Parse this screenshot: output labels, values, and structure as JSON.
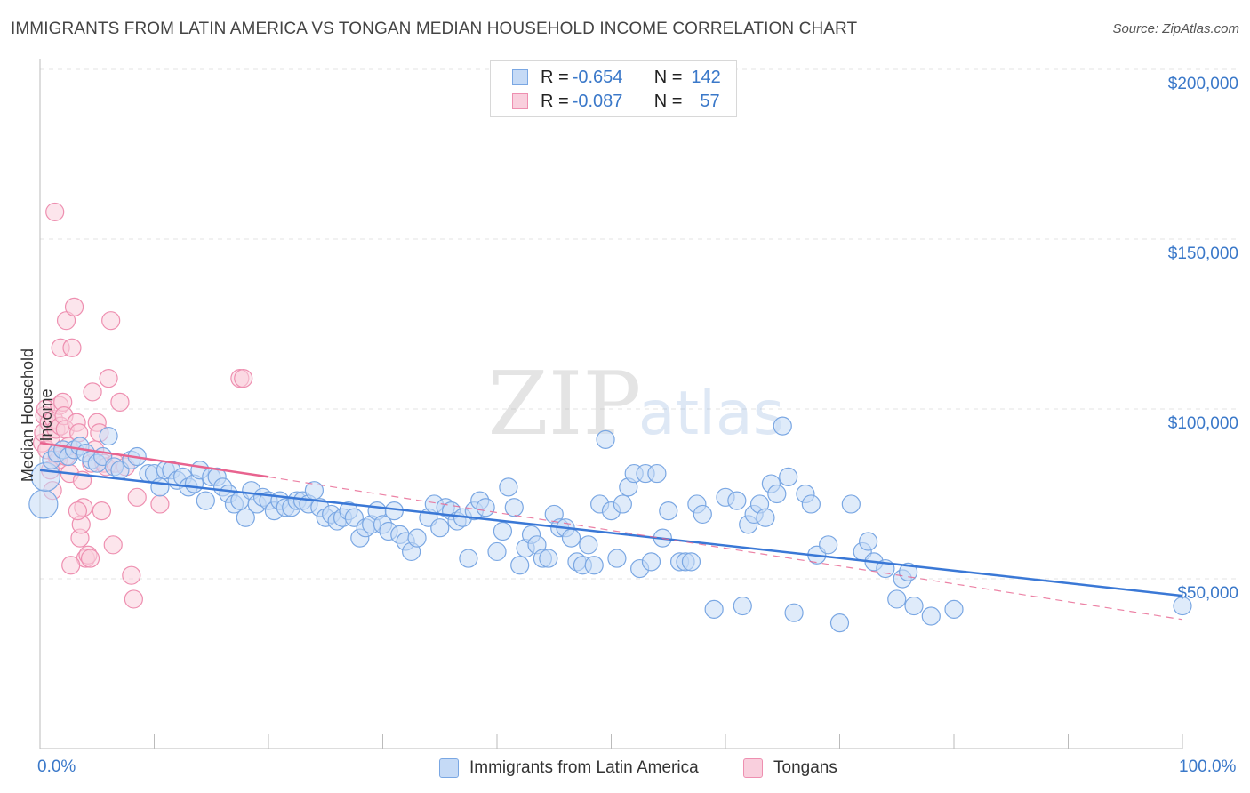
{
  "header": {
    "title": "IMMIGRANTS FROM LATIN AMERICA VS TONGAN MEDIAN HOUSEHOLD INCOME CORRELATION CHART",
    "source": "Source: ZipAtlas.com"
  },
  "watermark": {
    "zip": "ZIP",
    "atlas": "atlas"
  },
  "legend": {
    "items": [
      {
        "r_label": "R = ",
        "r_value": "-0.654",
        "n_label": "N = ",
        "n_value": "142",
        "color": "#7aa7e3",
        "fill": "#c5daf6"
      },
      {
        "r_label": "R = ",
        "r_value": "-0.087",
        "n_label": "N = ",
        "n_value": "57",
        "color": "#ee8fb0",
        "fill": "#f9cfdd"
      }
    ]
  },
  "bottom_legend": {
    "items": [
      {
        "label": "Immigrants from Latin America",
        "color": "#7aa7e3",
        "fill": "#c5daf6"
      },
      {
        "label": "Tongans",
        "color": "#ee8fb0",
        "fill": "#f9cfdd"
      }
    ]
  },
  "chart_data": {
    "type": "scatter",
    "title": "IMMIGRANTS FROM LATIN AMERICA VS TONGAN MEDIAN HOUSEHOLD INCOME CORRELATION CHART",
    "xlabel": "",
    "ylabel": "Median Household Income",
    "xlim": [
      0,
      100
    ],
    "ylim": [
      0,
      205000
    ],
    "x_tick_labels": [
      "0.0%",
      "100.0%"
    ],
    "y_ticks": [
      50000,
      100000,
      150000,
      200000
    ],
    "y_tick_labels": [
      "$50,000",
      "$100,000",
      "$150,000",
      "$200,000"
    ],
    "grid": true,
    "legend_position": "top-center",
    "series": [
      {
        "name": "Immigrants from Latin America",
        "color": "#3a78d6",
        "fill": "#c5daf6",
        "stroke": "#7aa7e3",
        "trend": {
          "x": [
            0,
            100
          ],
          "y": [
            82000,
            45000
          ],
          "style": "solid"
        },
        "points": [
          [
            0.3,
            72000
          ],
          [
            0.5,
            80000
          ],
          [
            1.0,
            85000
          ],
          [
            1.5,
            87000
          ],
          [
            2.0,
            88000
          ],
          [
            2.5,
            86000
          ],
          [
            3.0,
            88000
          ],
          [
            3.5,
            89000
          ],
          [
            4.0,
            87000
          ],
          [
            4.5,
            85000
          ],
          [
            5.0,
            84000
          ],
          [
            5.5,
            86000
          ],
          [
            6.0,
            92000
          ],
          [
            6.5,
            83000
          ],
          [
            7.0,
            82000
          ],
          [
            8.0,
            85000
          ],
          [
            8.5,
            86000
          ],
          [
            9.5,
            81000
          ],
          [
            10.0,
            81000
          ],
          [
            10.5,
            77000
          ],
          [
            11.0,
            82000
          ],
          [
            11.5,
            82000
          ],
          [
            12.0,
            79000
          ],
          [
            12.5,
            80000
          ],
          [
            13.0,
            77000
          ],
          [
            13.5,
            78000
          ],
          [
            14.0,
            82000
          ],
          [
            14.5,
            73000
          ],
          [
            15.0,
            80000
          ],
          [
            15.5,
            80000
          ],
          [
            16.0,
            77000
          ],
          [
            16.5,
            75000
          ],
          [
            17.0,
            72000
          ],
          [
            17.5,
            73000
          ],
          [
            18.0,
            68000
          ],
          [
            18.5,
            76000
          ],
          [
            19.0,
            72000
          ],
          [
            19.5,
            74000
          ],
          [
            20.0,
            73000
          ],
          [
            20.5,
            70000
          ],
          [
            21.0,
            73000
          ],
          [
            21.5,
            71000
          ],
          [
            22.0,
            71000
          ],
          [
            22.5,
            73000
          ],
          [
            23.0,
            73000
          ],
          [
            23.5,
            72000
          ],
          [
            24.0,
            76000
          ],
          [
            24.5,
            71000
          ],
          [
            25.0,
            68000
          ],
          [
            25.5,
            69000
          ],
          [
            26.0,
            67000
          ],
          [
            26.5,
            68000
          ],
          [
            27.0,
            70000
          ],
          [
            27.5,
            68000
          ],
          [
            28.0,
            62000
          ],
          [
            28.5,
            65000
          ],
          [
            29.0,
            66000
          ],
          [
            29.5,
            70000
          ],
          [
            30.0,
            66000
          ],
          [
            30.5,
            64000
          ],
          [
            31.0,
            70000
          ],
          [
            31.5,
            63000
          ],
          [
            32.0,
            61000
          ],
          [
            32.5,
            58000
          ],
          [
            33.0,
            62000
          ],
          [
            34.0,
            68000
          ],
          [
            34.5,
            72000
          ],
          [
            35.0,
            65000
          ],
          [
            35.5,
            71000
          ],
          [
            36.0,
            70000
          ],
          [
            36.5,
            67000
          ],
          [
            37.0,
            68000
          ],
          [
            37.5,
            56000
          ],
          [
            38.0,
            70000
          ],
          [
            38.5,
            73000
          ],
          [
            39.0,
            71000
          ],
          [
            40.0,
            58000
          ],
          [
            40.5,
            64000
          ],
          [
            41.0,
            77000
          ],
          [
            41.5,
            71000
          ],
          [
            42.0,
            54000
          ],
          [
            42.5,
            59000
          ],
          [
            43.0,
            63000
          ],
          [
            43.5,
            60000
          ],
          [
            44.0,
            56000
          ],
          [
            44.5,
            56000
          ],
          [
            45.0,
            69000
          ],
          [
            45.5,
            65000
          ],
          [
            46.0,
            65000
          ],
          [
            46.5,
            62000
          ],
          [
            47.0,
            55000
          ],
          [
            47.5,
            54000
          ],
          [
            48.0,
            60000
          ],
          [
            48.5,
            54000
          ],
          [
            49.0,
            72000
          ],
          [
            49.5,
            91000
          ],
          [
            50.0,
            70000
          ],
          [
            51.0,
            72000
          ],
          [
            51.5,
            77000
          ],
          [
            52.0,
            81000
          ],
          [
            53.0,
            81000
          ],
          [
            54.0,
            81000
          ],
          [
            50.5,
            56000
          ],
          [
            52.5,
            53000
          ],
          [
            53.5,
            55000
          ],
          [
            54.5,
            62000
          ],
          [
            55.0,
            70000
          ],
          [
            56.0,
            55000
          ],
          [
            56.5,
            55000
          ],
          [
            57.0,
            55000
          ],
          [
            57.5,
            72000
          ],
          [
            58.0,
            69000
          ],
          [
            59.0,
            41000
          ],
          [
            60.0,
            74000
          ],
          [
            61.0,
            73000
          ],
          [
            61.5,
            42000
          ],
          [
            62.0,
            66000
          ],
          [
            62.5,
            69000
          ],
          [
            63.0,
            72000
          ],
          [
            63.5,
            68000
          ],
          [
            64.0,
            78000
          ],
          [
            64.5,
            75000
          ],
          [
            65.0,
            95000
          ],
          [
            65.5,
            80000
          ],
          [
            66.0,
            40000
          ],
          [
            67.0,
            75000
          ],
          [
            67.5,
            72000
          ],
          [
            68.0,
            57000
          ],
          [
            69.0,
            60000
          ],
          [
            70.0,
            37000
          ],
          [
            71.0,
            72000
          ],
          [
            72.0,
            58000
          ],
          [
            72.5,
            61000
          ],
          [
            73.0,
            55000
          ],
          [
            74.0,
            53000
          ],
          [
            75.0,
            44000
          ],
          [
            75.5,
            50000
          ],
          [
            76.0,
            52000
          ],
          [
            76.5,
            42000
          ],
          [
            78.0,
            39000
          ],
          [
            80.0,
            41000
          ],
          [
            100.0,
            42000
          ]
        ]
      },
      {
        "name": "Tongans",
        "color": "#e8638f",
        "fill": "#f9cfdd",
        "stroke": "#ee8fb0",
        "trend": {
          "x": [
            0,
            20
          ],
          "y": [
            90000,
            80000
          ],
          "extended_x": [
            20,
            100
          ],
          "extended_y": [
            80000,
            38000
          ],
          "style": "solid-then-dashed"
        },
        "points": [
          [
            0.2,
            90000
          ],
          [
            0.3,
            93000
          ],
          [
            0.4,
            98000
          ],
          [
            0.5,
            100000
          ],
          [
            0.6,
            88000
          ],
          [
            0.8,
            96000
          ],
          [
            1.0,
            92000
          ],
          [
            1.2,
            97000
          ],
          [
            1.4,
            94000
          ],
          [
            1.5,
            86000
          ],
          [
            1.6,
            85000
          ],
          [
            1.7,
            101000
          ],
          [
            1.8,
            95000
          ],
          [
            2.0,
            102000
          ],
          [
            2.1,
            98000
          ],
          [
            2.2,
            94000
          ],
          [
            2.3,
            86000
          ],
          [
            2.5,
            89000
          ],
          [
            2.6,
            81000
          ],
          [
            1.3,
            158000
          ],
          [
            1.8,
            118000
          ],
          [
            2.3,
            126000
          ],
          [
            2.8,
            118000
          ],
          [
            3.0,
            130000
          ],
          [
            3.2,
            96000
          ],
          [
            3.4,
            93000
          ],
          [
            3.5,
            62000
          ],
          [
            3.6,
            66000
          ],
          [
            3.7,
            79000
          ],
          [
            3.8,
            71000
          ],
          [
            4.0,
            56000
          ],
          [
            4.2,
            57000
          ],
          [
            4.5,
            84000
          ],
          [
            4.8,
            88000
          ],
          [
            4.6,
            105000
          ],
          [
            5.0,
            96000
          ],
          [
            5.2,
            93000
          ],
          [
            5.4,
            70000
          ],
          [
            5.6,
            84000
          ],
          [
            5.8,
            83000
          ],
          [
            6.0,
            109000
          ],
          [
            6.2,
            126000
          ],
          [
            6.4,
            60000
          ],
          [
            6.6,
            84000
          ],
          [
            7.0,
            102000
          ],
          [
            7.5,
            83000
          ],
          [
            8.0,
            51000
          ],
          [
            8.2,
            44000
          ],
          [
            8.5,
            74000
          ],
          [
            10.5,
            72000
          ],
          [
            17.5,
            109000
          ],
          [
            17.8,
            109000
          ],
          [
            2.7,
            54000
          ],
          [
            3.3,
            70000
          ],
          [
            4.4,
            56000
          ],
          [
            0.9,
            82000
          ],
          [
            1.1,
            76000
          ]
        ]
      }
    ]
  }
}
